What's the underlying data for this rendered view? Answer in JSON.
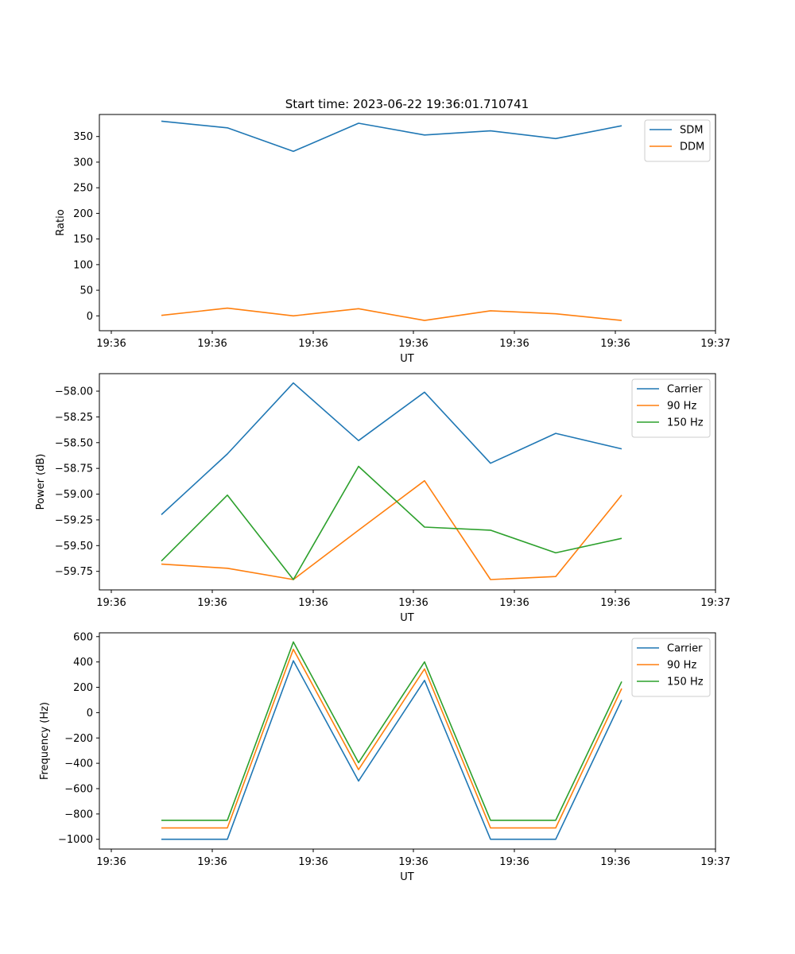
{
  "title": "Start time: 2023-06-22 19:36:01.710741",
  "colors": {
    "blue": "#1f77b4",
    "orange": "#ff7f0e",
    "green": "#2ca02c"
  },
  "chart_data": [
    {
      "type": "line",
      "title": "Start time: 2023-06-22 19:36:01.710741",
      "xlabel": "UT",
      "ylabel": "Ratio",
      "x_tick_labels": [
        "19:36",
        "19:36",
        "19:36",
        "19:36",
        "19:36",
        "19:36",
        "19:36"
      ],
      "x_tick_last": "19:37",
      "yticks": [
        0,
        50,
        100,
        150,
        200,
        250,
        300,
        350
      ],
      "ylim": [
        -29,
        393
      ],
      "legend": "top-right",
      "grid": false,
      "series": [
        {
          "name": "SDM",
          "color": "#1f77b4",
          "values": [
            380,
            367,
            321,
            376,
            353,
            361,
            346,
            371
          ]
        },
        {
          "name": "DDM",
          "color": "#ff7f0e",
          "values": [
            1,
            15,
            0,
            14,
            -9,
            10,
            4,
            -9
          ]
        }
      ]
    },
    {
      "type": "line",
      "title": "",
      "xlabel": "UT",
      "ylabel": "Power (dB)",
      "x_tick_labels": [
        "19:36",
        "19:36",
        "19:36",
        "19:36",
        "19:36",
        "19:36",
        "19:36"
      ],
      "x_tick_last": "19:37",
      "yticks": [
        -59.75,
        -59.5,
        -59.25,
        -59.0,
        -58.75,
        -58.5,
        -58.25,
        -58.0
      ],
      "ytick_labels": [
        "−59.75",
        "−59.50",
        "−59.25",
        "−59.00",
        "−58.75",
        "−58.50",
        "−58.25",
        "−58.00"
      ],
      "ylim": [
        -59.93,
        -57.83
      ],
      "legend": "top-right",
      "grid": false,
      "series": [
        {
          "name": "Carrier",
          "color": "#1f77b4",
          "values": [
            -59.2,
            -58.61,
            -57.92,
            -58.48,
            -58.01,
            -58.7,
            -58.41,
            -58.56
          ]
        },
        {
          "name": "90 Hz",
          "color": "#ff7f0e",
          "values": [
            -59.68,
            -59.72,
            -59.83,
            -59.35,
            -58.87,
            -59.83,
            -59.8,
            -59.01
          ]
        },
        {
          "name": "150 Hz",
          "color": "#2ca02c",
          "values": [
            -59.65,
            -59.01,
            -59.83,
            -58.73,
            -59.32,
            -59.35,
            -59.57,
            -59.43
          ]
        }
      ]
    },
    {
      "type": "line",
      "title": "",
      "xlabel": "UT",
      "ylabel": "Frequency (Hz)",
      "x_tick_labels": [
        "19:36",
        "19:36",
        "19:36",
        "19:36",
        "19:36",
        "19:36",
        "19:36"
      ],
      "x_tick_last": "19:37",
      "yticks": [
        -1000,
        -800,
        -600,
        -400,
        -200,
        0,
        200,
        400,
        600
      ],
      "ytick_labels": [
        "−1000",
        "−800",
        "−600",
        "−400",
        "−200",
        "0",
        "200",
        "400",
        "600"
      ],
      "ylim": [
        -1077,
        630
      ],
      "legend": "top-right",
      "grid": false,
      "series": [
        {
          "name": "Carrier",
          "color": "#1f77b4",
          "values": [
            -1000,
            -1000,
            410,
            -540,
            255,
            -1000,
            -1000,
            100
          ]
        },
        {
          "name": "90 Hz",
          "color": "#ff7f0e",
          "values": [
            -910,
            -910,
            500,
            -450,
            345,
            -910,
            -910,
            190
          ]
        },
        {
          "name": "150 Hz",
          "color": "#2ca02c",
          "values": [
            -850,
            -850,
            558,
            -395,
            400,
            -850,
            -850,
            245
          ]
        }
      ]
    }
  ]
}
